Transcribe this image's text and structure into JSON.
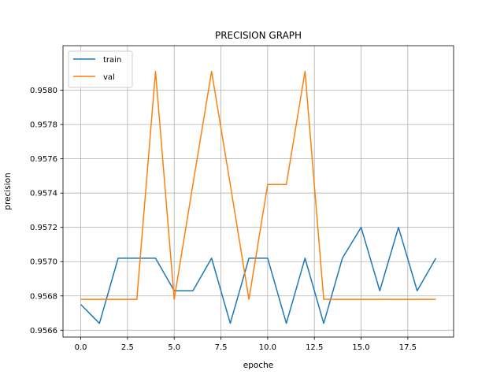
{
  "chart_data": {
    "type": "line",
    "title": "PRECISION GRAPH",
    "xlabel": "epoche",
    "ylabel": "precision",
    "x": [
      0,
      1,
      2,
      3,
      4,
      5,
      6,
      7,
      8,
      9,
      10,
      11,
      12,
      13,
      14,
      15,
      16,
      17,
      18,
      19
    ],
    "xlim": [
      -0.95,
      19.95
    ],
    "ylim": [
      0.95656,
      0.95826
    ],
    "xticks": [
      0.0,
      2.5,
      5.0,
      7.5,
      10.0,
      12.5,
      15.0,
      17.5
    ],
    "xtick_labels": [
      "0.0",
      "2.5",
      "5.0",
      "7.5",
      "10.0",
      "12.5",
      "15.0",
      "17.5"
    ],
    "yticks": [
      0.9566,
      0.9568,
      0.957,
      0.9572,
      0.9574,
      0.9576,
      0.9578,
      0.958
    ],
    "ytick_labels": [
      "0.9566",
      "0.9568",
      "0.9570",
      "0.9572",
      "0.9574",
      "0.9576",
      "0.9578",
      "0.9580"
    ],
    "grid": true,
    "legend_position": "top-left",
    "series": [
      {
        "name": "train",
        "color": "#1f77b4",
        "values": [
          0.95675,
          0.95664,
          0.95702,
          0.95702,
          0.95702,
          0.95683,
          0.95683,
          0.95702,
          0.95664,
          0.95702,
          0.95702,
          0.95664,
          0.95702,
          0.95664,
          0.95702,
          0.9572,
          0.95683,
          0.9572,
          0.95683,
          0.95702
        ]
      },
      {
        "name": "val",
        "color": "#ff7f0e",
        "values": [
          0.95678,
          0.95678,
          0.95678,
          0.95678,
          0.95811,
          0.95678,
          0.95745,
          0.95811,
          0.95745,
          0.95678,
          0.95745,
          0.95745,
          0.95811,
          0.95678,
          0.95678,
          0.95678,
          0.95678,
          0.95678,
          0.95678,
          0.95678
        ]
      }
    ]
  }
}
